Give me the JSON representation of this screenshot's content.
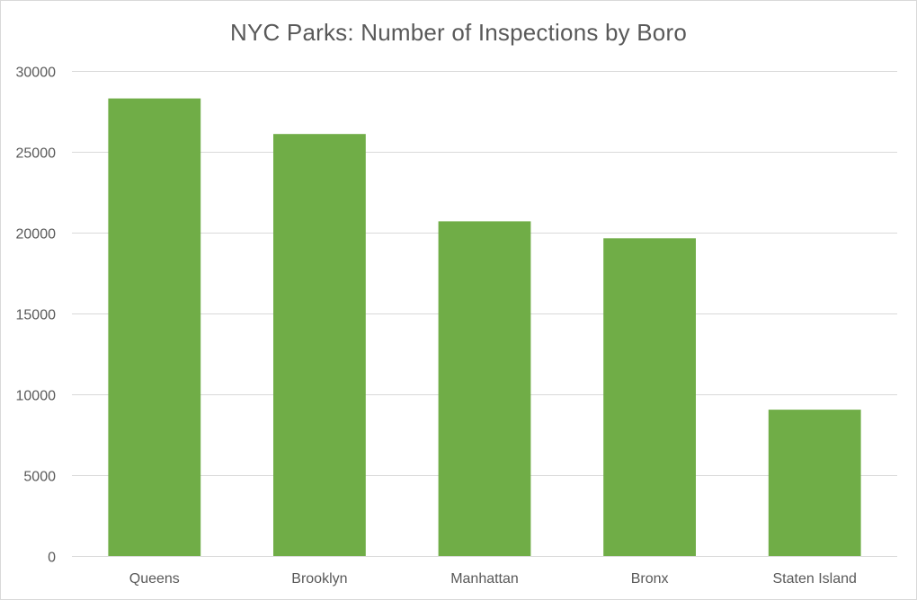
{
  "chart_data": {
    "type": "bar",
    "title": "NYC Parks: Number of Inspections by Boro",
    "xlabel": "",
    "ylabel": "",
    "categories": [
      "Queens",
      "Brooklyn",
      "Manhattan",
      "Bronx",
      "Staten Island"
    ],
    "values": [
      28300,
      26100,
      20700,
      19650,
      9050
    ],
    "ylim": [
      0,
      30000
    ],
    "yticks": [
      "0",
      "5000",
      "10000",
      "15000",
      "20000",
      "25000",
      "30000"
    ],
    "grid": true,
    "legend": "none",
    "bar_color": "#70ad47",
    "grid_color": "#d9d9d9"
  }
}
